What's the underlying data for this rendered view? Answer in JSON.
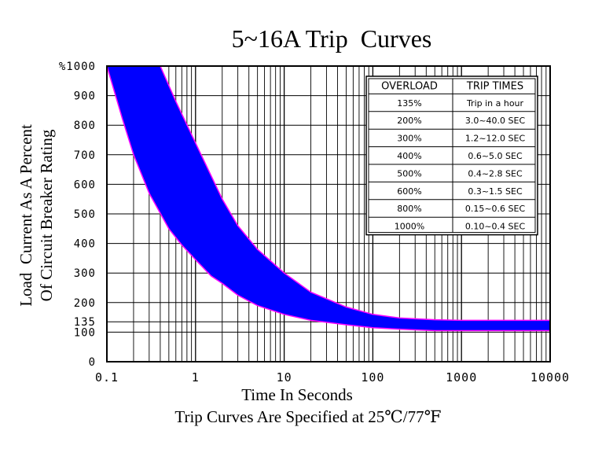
{
  "chart_data": {
    "type": "area",
    "title": "5~16A Trip  Curves",
    "xlabel": "Time In Seconds",
    "ylabel_line1": "Load  Current As A Percent",
    "ylabel_line2": "Of Circuit Breaker Rating",
    "footnote": "Trip Curves Are Specified at 25℃/77℉",
    "x_scale": "log",
    "xlim": [
      0.1,
      10000
    ],
    "ylim": [
      0,
      1000
    ],
    "grid": true,
    "x_ticks": [
      {
        "value": 0.1,
        "label": "0.1"
      },
      {
        "value": 1,
        "label": "1"
      },
      {
        "value": 10,
        "label": "10"
      },
      {
        "value": 100,
        "label": "100"
      },
      {
        "value": 1000,
        "label": "1000"
      },
      {
        "value": 10000,
        "label": "10000"
      }
    ],
    "y_ticks": [
      {
        "value": 1000,
        "label": "%1000"
      },
      {
        "value": 900,
        "label": "900"
      },
      {
        "value": 800,
        "label": "800"
      },
      {
        "value": 700,
        "label": "700"
      },
      {
        "value": 600,
        "label": "600"
      },
      {
        "value": 500,
        "label": "500"
      },
      {
        "value": 400,
        "label": "400"
      },
      {
        "value": 300,
        "label": "300"
      },
      {
        "value": 200,
        "label": "200"
      },
      {
        "value": 135,
        "label": "135"
      },
      {
        "value": 100,
        "label": "100"
      },
      {
        "value": 0,
        "label": "0"
      }
    ],
    "band_color": "#0000ff",
    "band_edge_color": "#ff00ff",
    "band": {
      "min_time_curve": [
        {
          "x": 0.1,
          "y": 1000
        },
        {
          "x": 0.15,
          "y": 820
        },
        {
          "x": 0.2,
          "y": 700
        },
        {
          "x": 0.3,
          "y": 570
        },
        {
          "x": 0.5,
          "y": 450
        },
        {
          "x": 0.7,
          "y": 395
        },
        {
          "x": 1,
          "y": 345
        },
        {
          "x": 1.5,
          "y": 290
        },
        {
          "x": 2,
          "y": 265
        },
        {
          "x": 3,
          "y": 225
        },
        {
          "x": 5,
          "y": 190
        },
        {
          "x": 10,
          "y": 160
        },
        {
          "x": 20,
          "y": 140
        },
        {
          "x": 50,
          "y": 125
        },
        {
          "x": 100,
          "y": 115
        },
        {
          "x": 200,
          "y": 110
        },
        {
          "x": 500,
          "y": 105
        },
        {
          "x": 1000,
          "y": 105
        },
        {
          "x": 10000,
          "y": 105
        }
      ],
      "max_time_curve": [
        {
          "x": 0.4,
          "y": 1000
        },
        {
          "x": 0.6,
          "y": 880
        },
        {
          "x": 1,
          "y": 740
        },
        {
          "x": 2,
          "y": 550
        },
        {
          "x": 3,
          "y": 460
        },
        {
          "x": 5,
          "y": 380
        },
        {
          "x": 10,
          "y": 300
        },
        {
          "x": 20,
          "y": 235
        },
        {
          "x": 50,
          "y": 185
        },
        {
          "x": 100,
          "y": 160
        },
        {
          "x": 200,
          "y": 148
        },
        {
          "x": 500,
          "y": 142
        },
        {
          "x": 1000,
          "y": 140
        },
        {
          "x": 10000,
          "y": 140
        }
      ]
    }
  },
  "table": {
    "headers": [
      "OVERLOAD",
      "TRIP TIMES"
    ],
    "rows": [
      [
        "135%",
        "Trip in a hour"
      ],
      [
        "200%",
        "3.0~40.0 SEC"
      ],
      [
        "300%",
        "1.2~12.0 SEC"
      ],
      [
        "400%",
        "0.6~5.0 SEC"
      ],
      [
        "500%",
        "0.4~2.8 SEC"
      ],
      [
        "600%",
        "0.3~1.5 SEC"
      ],
      [
        "800%",
        "0.15~0.6 SEC"
      ],
      [
        "1000%",
        "0.10~0.4 SEC"
      ]
    ]
  }
}
